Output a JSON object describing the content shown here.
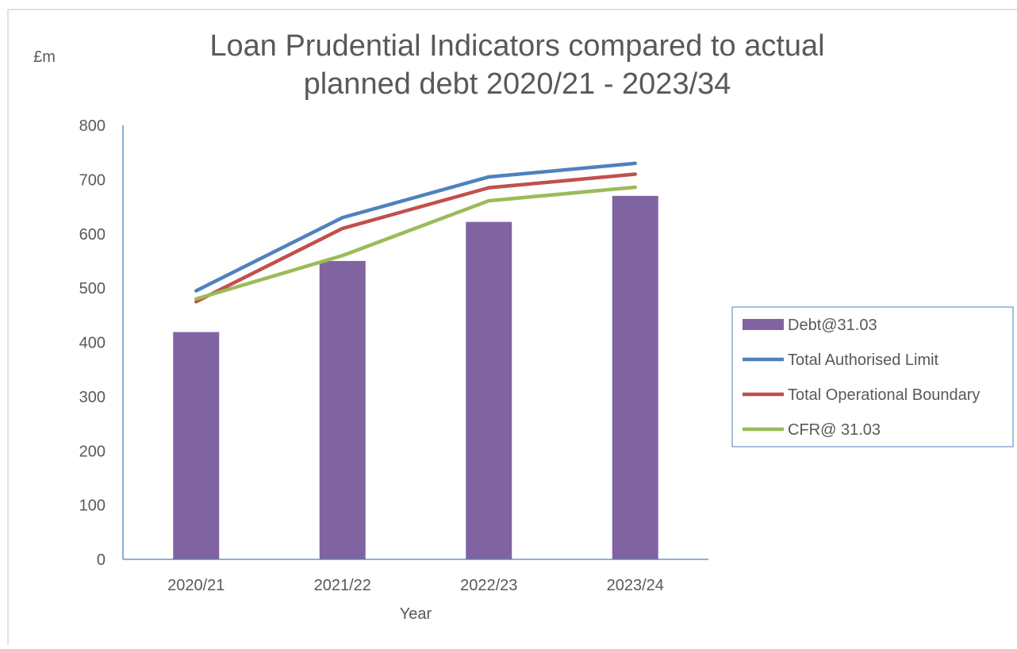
{
  "chart_data": {
    "type": "bar",
    "title_lines": [
      "Loan Prudential Indicators  compared to actual",
      "planned debt 2020/21 - 2023/34"
    ],
    "ylabel": "£m",
    "xlabel": "Year",
    "categories": [
      "2020/21",
      "2021/22",
      "2022/23",
      "2023/24"
    ],
    "ylim": [
      0,
      800
    ],
    "yticks": [
      "0",
      "100",
      "200",
      "300",
      "400",
      "500",
      "600",
      "700",
      "800"
    ],
    "grid": false,
    "legend_position": "right",
    "series": [
      {
        "name": "Debt@31.03",
        "kind": "bar",
        "color": "#8064A2",
        "values": [
          419,
          550,
          622,
          670
        ]
      },
      {
        "name": "Total Authorised Limit",
        "kind": "line",
        "color": "#4F81BD",
        "values": [
          495,
          630,
          705,
          730
        ]
      },
      {
        "name": "Total Operational Boundary",
        "kind": "line",
        "color": "#C0504D",
        "values": [
          475,
          610,
          685,
          710
        ]
      },
      {
        "name": "CFR@ 31.03",
        "kind": "line",
        "color": "#9BBB59",
        "values": [
          480,
          560,
          661,
          686
        ]
      }
    ]
  }
}
